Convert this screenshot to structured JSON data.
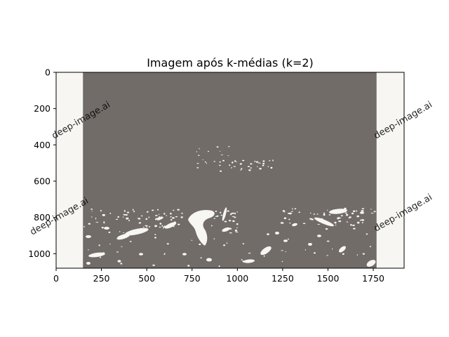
{
  "chart_data": {
    "type": "image",
    "title": "Imagem após k-médias (k=2)",
    "image_width": 1920,
    "image_height": 1080,
    "xlim": [
      0,
      1920
    ],
    "ylim": [
      1080,
      0
    ],
    "x_ticks": [
      0,
      250,
      500,
      750,
      1000,
      1250,
      1500,
      1750
    ],
    "y_ticks": [
      0,
      200,
      400,
      600,
      800,
      1000
    ],
    "clusters": [
      {
        "color": "#716c68",
        "role": "dark cluster"
      },
      {
        "color": "#f7f6f2",
        "role": "light cluster"
      }
    ],
    "dark_region_x": [
      148,
      1768
    ],
    "watermark": "deep-image.ai"
  }
}
